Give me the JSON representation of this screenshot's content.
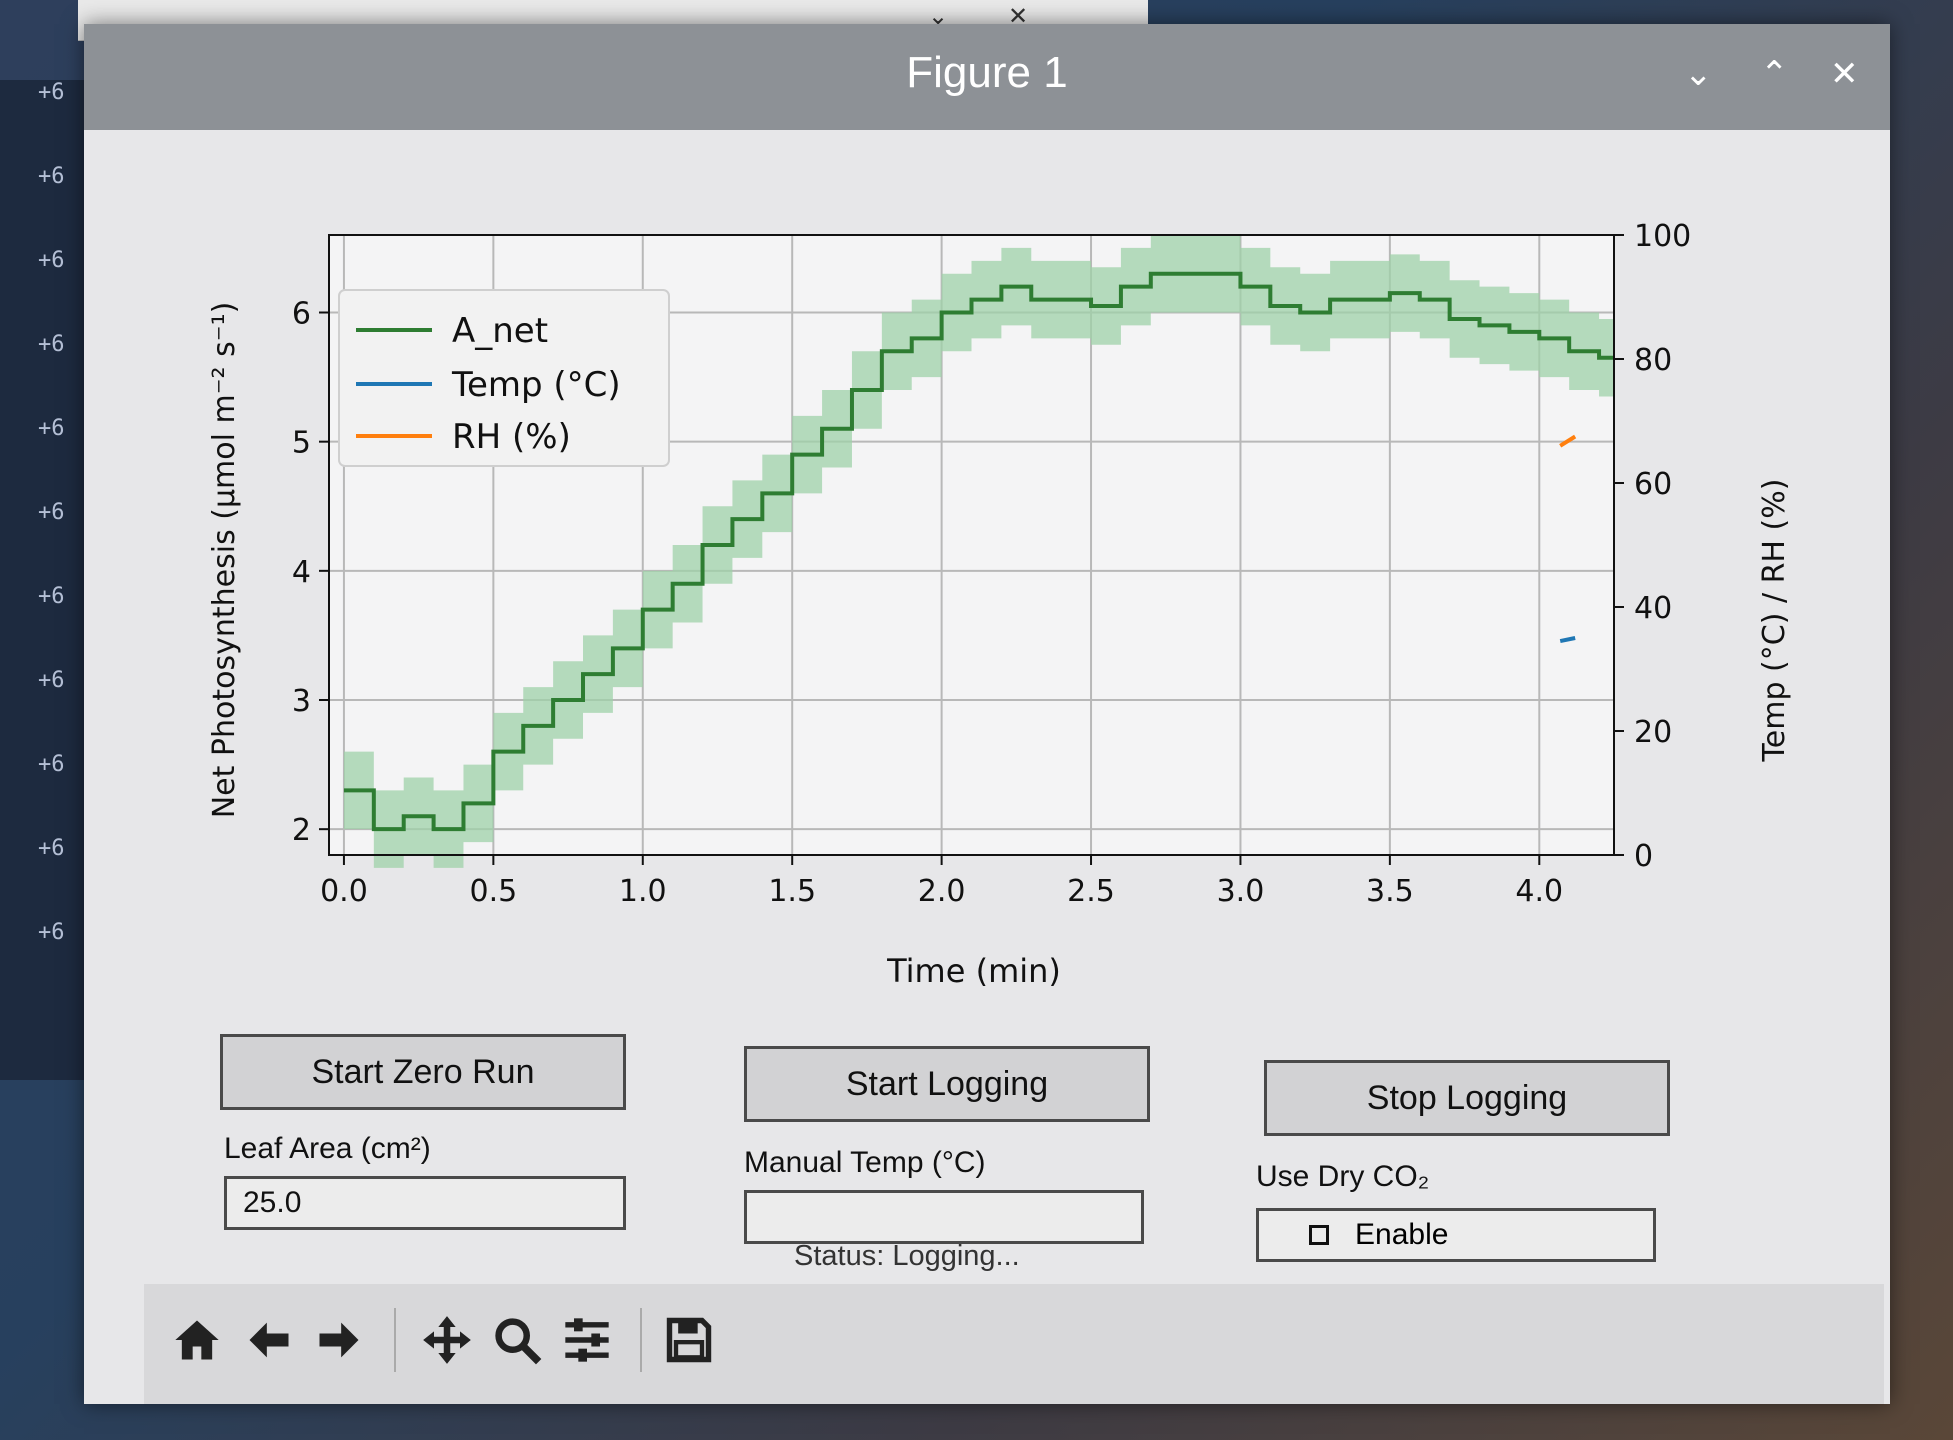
{
  "window": {
    "title": "Figure 1",
    "controls": {
      "minimize": "⌄",
      "maximize": "⌃",
      "close": "✕"
    }
  },
  "desktop": {
    "terminal_lines": [
      "+6",
      "+6",
      "+6",
      "+6",
      "+6",
      "+6",
      "+6",
      "+6",
      "+6",
      "+6",
      "+6"
    ]
  },
  "chart_data": {
    "type": "line",
    "xlabel": "Time (min)",
    "ylabel_left": "Net Photosynthesis (μmol m⁻² s⁻¹)",
    "ylabel_right": "Temp (°C) / RH (%)",
    "xlim": [
      -0.05,
      4.25
    ],
    "ylim_left": [
      1.8,
      6.6
    ],
    "ylim_right": [
      0,
      100
    ],
    "x_ticks": [
      "0.0",
      "0.5",
      "1.0",
      "1.5",
      "2.0",
      "2.5",
      "3.0",
      "3.5",
      "4.0"
    ],
    "y_ticks_left": [
      "2",
      "3",
      "4",
      "5",
      "6"
    ],
    "y_ticks_right": [
      "0",
      "20",
      "40",
      "60",
      "80",
      "100"
    ],
    "grid": true,
    "legend_position": "top-left",
    "legend": [
      {
        "label": "A_net",
        "color": "#2e7d32"
      },
      {
        "label": "Temp (°C)",
        "color": "#1f77b4"
      },
      {
        "label": "RH (%)",
        "color": "#ff7f0e"
      }
    ],
    "series": [
      {
        "name": "A_net",
        "color": "#2e7d32",
        "style": "step",
        "band_color": "#9fd1a8",
        "x": [
          0.0,
          0.1,
          0.2,
          0.3,
          0.4,
          0.5,
          0.6,
          0.7,
          0.8,
          0.9,
          1.0,
          1.1,
          1.2,
          1.3,
          1.4,
          1.5,
          1.6,
          1.7,
          1.8,
          1.9,
          2.0,
          2.1,
          2.2,
          2.3,
          2.4,
          2.5,
          2.6,
          2.7,
          2.8,
          2.9,
          3.0,
          3.1,
          3.2,
          3.3,
          3.4,
          3.5,
          3.6,
          3.7,
          3.8,
          3.9,
          4.0,
          4.1,
          4.2
        ],
        "y": [
          2.3,
          2.0,
          2.1,
          2.0,
          2.2,
          2.6,
          2.8,
          3.0,
          3.2,
          3.4,
          3.7,
          3.9,
          4.2,
          4.4,
          4.6,
          4.9,
          5.1,
          5.4,
          5.7,
          5.8,
          6.0,
          6.1,
          6.2,
          6.1,
          6.1,
          6.05,
          6.2,
          6.3,
          6.3,
          6.3,
          6.2,
          6.05,
          6.0,
          6.1,
          6.1,
          6.15,
          6.1,
          5.95,
          5.9,
          5.85,
          5.8,
          5.7,
          5.65
        ],
        "band": 0.3
      },
      {
        "name": "Temp (°C)",
        "color": "#1f77b4",
        "axis": "right",
        "x": [
          4.07,
          4.12
        ],
        "y": [
          34.5,
          35
        ]
      },
      {
        "name": "RH (%)",
        "color": "#ff7f0e",
        "axis": "right",
        "x": [
          4.07,
          4.12
        ],
        "y": [
          66,
          67.5
        ]
      }
    ]
  },
  "controls": {
    "start_zero_run": "Start Zero Run",
    "start_logging": "Start Logging",
    "stop_logging": "Stop Logging",
    "leaf_area_label": "Leaf Area (cm²)",
    "leaf_area_value": "25.0",
    "manual_temp_label": "Manual Temp (°C)",
    "manual_temp_value": "",
    "dry_co2_label": "Use Dry CO₂",
    "dry_co2_option": "Enable",
    "dry_co2_checked": false,
    "status": "Status: Logging..."
  },
  "toolbar": [
    "home-icon",
    "back-icon",
    "forward-icon",
    "pan-icon",
    "zoom-icon",
    "configure-icon",
    "save-icon"
  ]
}
